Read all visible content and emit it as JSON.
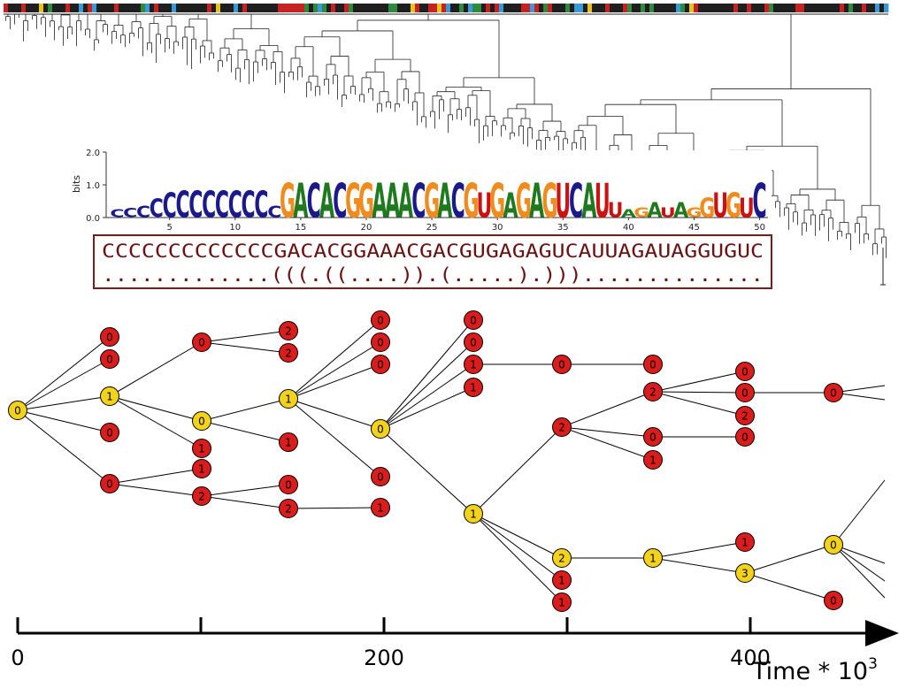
{
  "logo": {
    "ylabel": "bits",
    "y_ticks": [
      "0.0",
      "1.0",
      "2.0"
    ],
    "x_ticks": [
      "5",
      "10",
      "15",
      "20",
      "25",
      "30",
      "35",
      "40",
      "45",
      "50"
    ],
    "letters": "CCCCCCCCCCCCCGACACGGAAACGACGUGAGAGUCAUUAGAUAGGUGUC",
    "heights": [
      0.25,
      0.28,
      0.35,
      0.55,
      0.75,
      0.8,
      0.8,
      0.8,
      0.8,
      0.8,
      0.8,
      0.8,
      0.35,
      1.05,
      1.05,
      1.05,
      1.05,
      1.05,
      1.05,
      1.05,
      1.05,
      1.05,
      1.05,
      1.05,
      1.05,
      1.05,
      1.05,
      1.05,
      0.75,
      1.05,
      0.75,
      1.05,
      1.05,
      1.05,
      1.05,
      1.05,
      1.05,
      1.05,
      0.45,
      0.25,
      0.3,
      0.45,
      0.3,
      0.45,
      0.3,
      0.6,
      0.75,
      0.75,
      0.6,
      1.05
    ],
    "colors": {
      "A": "#1f7a1f",
      "C": "#1a1a8c",
      "G": "#f08c1e",
      "U": "#cc1111"
    }
  },
  "sequence": "CCCCCCCCCCCCCGACACGGAAACGACGUGAGAGUCAUUAGAUAGGUGUC",
  "structure": ".............(((.((....)).(.....).)))..............",
  "tree": {
    "leaves": 200,
    "bar_colors": [
      "#1f1f1f",
      "#1f1f1f",
      "#3a9ad9",
      "#1f1f1f",
      "#2e8b3e",
      "#1f1f1f",
      "#1f1f1f",
      "#c72222",
      "#1f1f1f",
      "#e8c21e",
      "#1f1f1f",
      "#2e8b3e",
      "#1f1f1f",
      "#c72222",
      "#1f1f1f",
      "#1f1f1f"
    ]
  },
  "phylo_colors": {
    "yellow": "#f2d21b",
    "red": "#d91c1c"
  },
  "nodes": [
    {
      "id": "n0",
      "label": "0",
      "color": "yellow"
    },
    {
      "id": "n1",
      "label": "0",
      "color": "red"
    },
    {
      "id": "n2",
      "label": "0",
      "color": "red"
    },
    {
      "id": "n3",
      "label": "1",
      "color": "yellow"
    },
    {
      "id": "n4",
      "label": "0",
      "color": "red"
    },
    {
      "id": "n5",
      "label": "0",
      "color": "red"
    },
    {
      "id": "n6",
      "label": "0",
      "color": "red"
    },
    {
      "id": "n7",
      "label": "0",
      "color": "yellow"
    },
    {
      "id": "n8",
      "label": "1",
      "color": "red"
    },
    {
      "id": "n9",
      "label": "1",
      "color": "red"
    },
    {
      "id": "n10",
      "label": "2",
      "color": "red"
    },
    {
      "id": "n11",
      "label": "2",
      "color": "red"
    },
    {
      "id": "n12",
      "label": "2",
      "color": "red"
    },
    {
      "id": "n13",
      "label": "1",
      "color": "yellow"
    },
    {
      "id": "n14",
      "label": "1",
      "color": "red"
    },
    {
      "id": "n15",
      "label": "0",
      "color": "red"
    },
    {
      "id": "n16",
      "label": "2",
      "color": "red"
    },
    {
      "id": "n17",
      "label": "0",
      "color": "red"
    },
    {
      "id": "n18",
      "label": "0",
      "color": "red"
    },
    {
      "id": "n19",
      "label": "0",
      "color": "red"
    },
    {
      "id": "n20",
      "label": "0",
      "color": "yellow"
    },
    {
      "id": "n21",
      "label": "0",
      "color": "red"
    },
    {
      "id": "n22",
      "label": "1",
      "color": "red"
    },
    {
      "id": "n23",
      "label": "0",
      "color": "red"
    },
    {
      "id": "n24",
      "label": "0",
      "color": "red"
    },
    {
      "id": "n25",
      "label": "1",
      "color": "red"
    },
    {
      "id": "n26",
      "label": "1",
      "color": "red"
    },
    {
      "id": "n27",
      "label": "1",
      "color": "yellow"
    },
    {
      "id": "n28",
      "label": "0",
      "color": "red"
    },
    {
      "id": "n29",
      "label": "2",
      "color": "red"
    },
    {
      "id": "n30",
      "label": "2",
      "color": "yellow"
    },
    {
      "id": "n31",
      "label": "1",
      "color": "red"
    },
    {
      "id": "n32",
      "label": "1",
      "color": "red"
    },
    {
      "id": "n33",
      "label": "0",
      "color": "red"
    },
    {
      "id": "n34",
      "label": "2",
      "color": "red"
    },
    {
      "id": "n35",
      "label": "0",
      "color": "red"
    },
    {
      "id": "n36",
      "label": "1",
      "color": "red"
    },
    {
      "id": "n37",
      "label": "1",
      "color": "yellow"
    },
    {
      "id": "n38",
      "label": "0",
      "color": "red"
    },
    {
      "id": "n39",
      "label": "0",
      "color": "red"
    },
    {
      "id": "n40",
      "label": "2",
      "color": "red"
    },
    {
      "id": "n41",
      "label": "0",
      "color": "red"
    },
    {
      "id": "n42",
      "label": "1",
      "color": "red"
    },
    {
      "id": "n43",
      "label": "3",
      "color": "yellow"
    },
    {
      "id": "n44",
      "label": "0",
      "color": "red"
    },
    {
      "id": "n45",
      "label": "0",
      "color": "yellow"
    },
    {
      "id": "n46",
      "label": "0",
      "color": "red"
    }
  ],
  "edges": [
    [
      "n0",
      "n1"
    ],
    [
      "n0",
      "n2"
    ],
    [
      "n0",
      "n3"
    ],
    [
      "n0",
      "n4"
    ],
    [
      "n0",
      "n5"
    ],
    [
      "n3",
      "n6"
    ],
    [
      "n3",
      "n7"
    ],
    [
      "n3",
      "n8"
    ],
    [
      "n5",
      "n9"
    ],
    [
      "n5",
      "n10"
    ],
    [
      "n6",
      "n11"
    ],
    [
      "n6",
      "n12"
    ],
    [
      "n7",
      "n13"
    ],
    [
      "n7",
      "n14"
    ],
    [
      "n10",
      "n15"
    ],
    [
      "n10",
      "n16"
    ],
    [
      "n13",
      "n17"
    ],
    [
      "n13",
      "n18"
    ],
    [
      "n13",
      "n19"
    ],
    [
      "n13",
      "n20"
    ],
    [
      "n13",
      "n21"
    ],
    [
      "n16",
      "n22"
    ],
    [
      "n20",
      "n23"
    ],
    [
      "n20",
      "n24"
    ],
    [
      "n20",
      "n25"
    ],
    [
      "n20",
      "n26"
    ],
    [
      "n20",
      "n27"
    ],
    [
      "n25",
      "n28"
    ],
    [
      "n28",
      "n33"
    ],
    [
      "n27",
      "n29"
    ],
    [
      "n27",
      "n30"
    ],
    [
      "n27",
      "n31"
    ],
    [
      "n27",
      "n32"
    ],
    [
      "n29",
      "n34"
    ],
    [
      "n29",
      "n35"
    ],
    [
      "n29",
      "n36"
    ],
    [
      "n34",
      "n38"
    ],
    [
      "n34",
      "n39"
    ],
    [
      "n34",
      "n40"
    ],
    [
      "n35",
      "n41"
    ],
    [
      "n39",
      "n44"
    ],
    [
      "n30",
      "n37"
    ],
    [
      "n37",
      "n42"
    ],
    [
      "n37",
      "n43"
    ],
    [
      "n43",
      "n45"
    ],
    [
      "n43",
      "n46"
    ]
  ],
  "open_branches": [
    {
      "from": "n44",
      "count": 2
    },
    {
      "from": "n45",
      "count": 4
    }
  ],
  "time_axis": {
    "ticks": [
      0,
      100,
      200,
      300,
      400
    ],
    "labels": [
      "0",
      "",
      "200",
      "",
      "400"
    ],
    "title_base": "Time * 10",
    "title_exp": "3"
  }
}
